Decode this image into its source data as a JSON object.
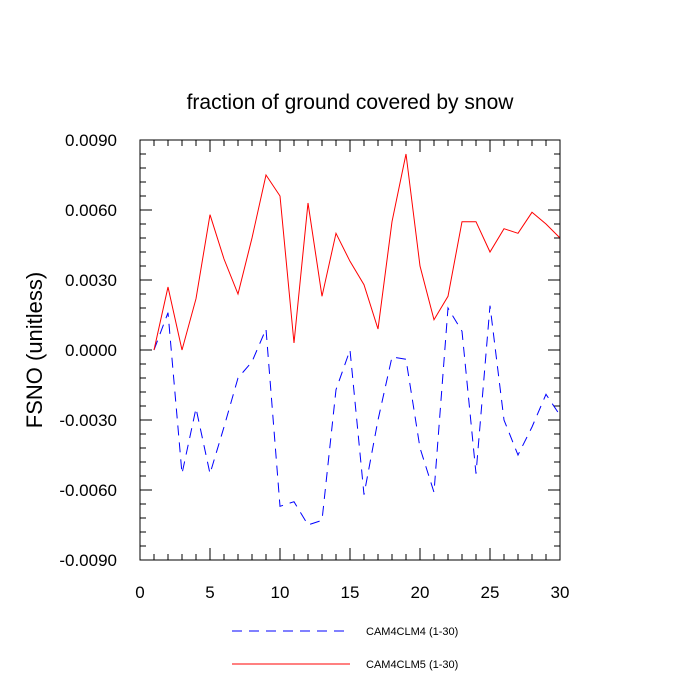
{
  "chart_data": {
    "type": "line",
    "title": "fraction of ground covered by snow",
    "xlabel": "",
    "ylabel": "FSNO  (unitless)",
    "xlim": [
      0,
      30
    ],
    "ylim": [
      -0.009,
      0.009
    ],
    "x_ticks": [
      0,
      5,
      10,
      15,
      20,
      25,
      30
    ],
    "x_tick_labels": [
      "0",
      "5",
      "10",
      "15",
      "20",
      "25",
      "30"
    ],
    "y_ticks": [
      -0.009,
      -0.006,
      -0.003,
      0.0,
      0.003,
      0.006,
      0.009
    ],
    "y_tick_labels": [
      "-0.0090",
      "-0.0060",
      "-0.0030",
      "0.0000",
      "0.0030",
      "0.0060",
      "0.0090"
    ],
    "grid": false,
    "legend_position": "bottom",
    "x": [
      1,
      2,
      3,
      4,
      5,
      6,
      7,
      8,
      9,
      10,
      11,
      12,
      13,
      14,
      15,
      16,
      17,
      18,
      19,
      20,
      21,
      22,
      23,
      24,
      25,
      26,
      27,
      28,
      29,
      30
    ],
    "series": [
      {
        "name": "CAM4CLM4 (1-30)",
        "color": "#0000ff",
        "style": "dashed",
        "values": [
          0.0,
          0.0016,
          -0.0053,
          -0.0025,
          -0.0053,
          -0.0033,
          -0.0012,
          -0.0005,
          0.0009,
          -0.0067,
          -0.0065,
          -0.0075,
          -0.0073,
          -0.0017,
          0.0,
          -0.0062,
          -0.003,
          -0.0003,
          -0.0004,
          -0.0042,
          -0.0061,
          0.0018,
          0.0008,
          -0.0053,
          0.0019,
          -0.003,
          -0.0045,
          -0.0033,
          -0.0019,
          -0.0028
        ]
      },
      {
        "name": "CAM4CLM5 (1-30)",
        "color": "#ff0000",
        "style": "solid",
        "values": [
          0.0,
          0.0027,
          0.0,
          0.0022,
          0.0058,
          0.0039,
          0.0024,
          0.0048,
          0.0075,
          0.0066,
          0.0003,
          0.0063,
          0.0023,
          0.005,
          0.0038,
          0.0028,
          0.0009,
          0.0055,
          0.0084,
          0.0036,
          0.0013,
          0.0023,
          0.0055,
          0.0055,
          0.0042,
          0.0052,
          0.005,
          0.0059,
          0.0054,
          0.0048
        ]
      }
    ]
  }
}
